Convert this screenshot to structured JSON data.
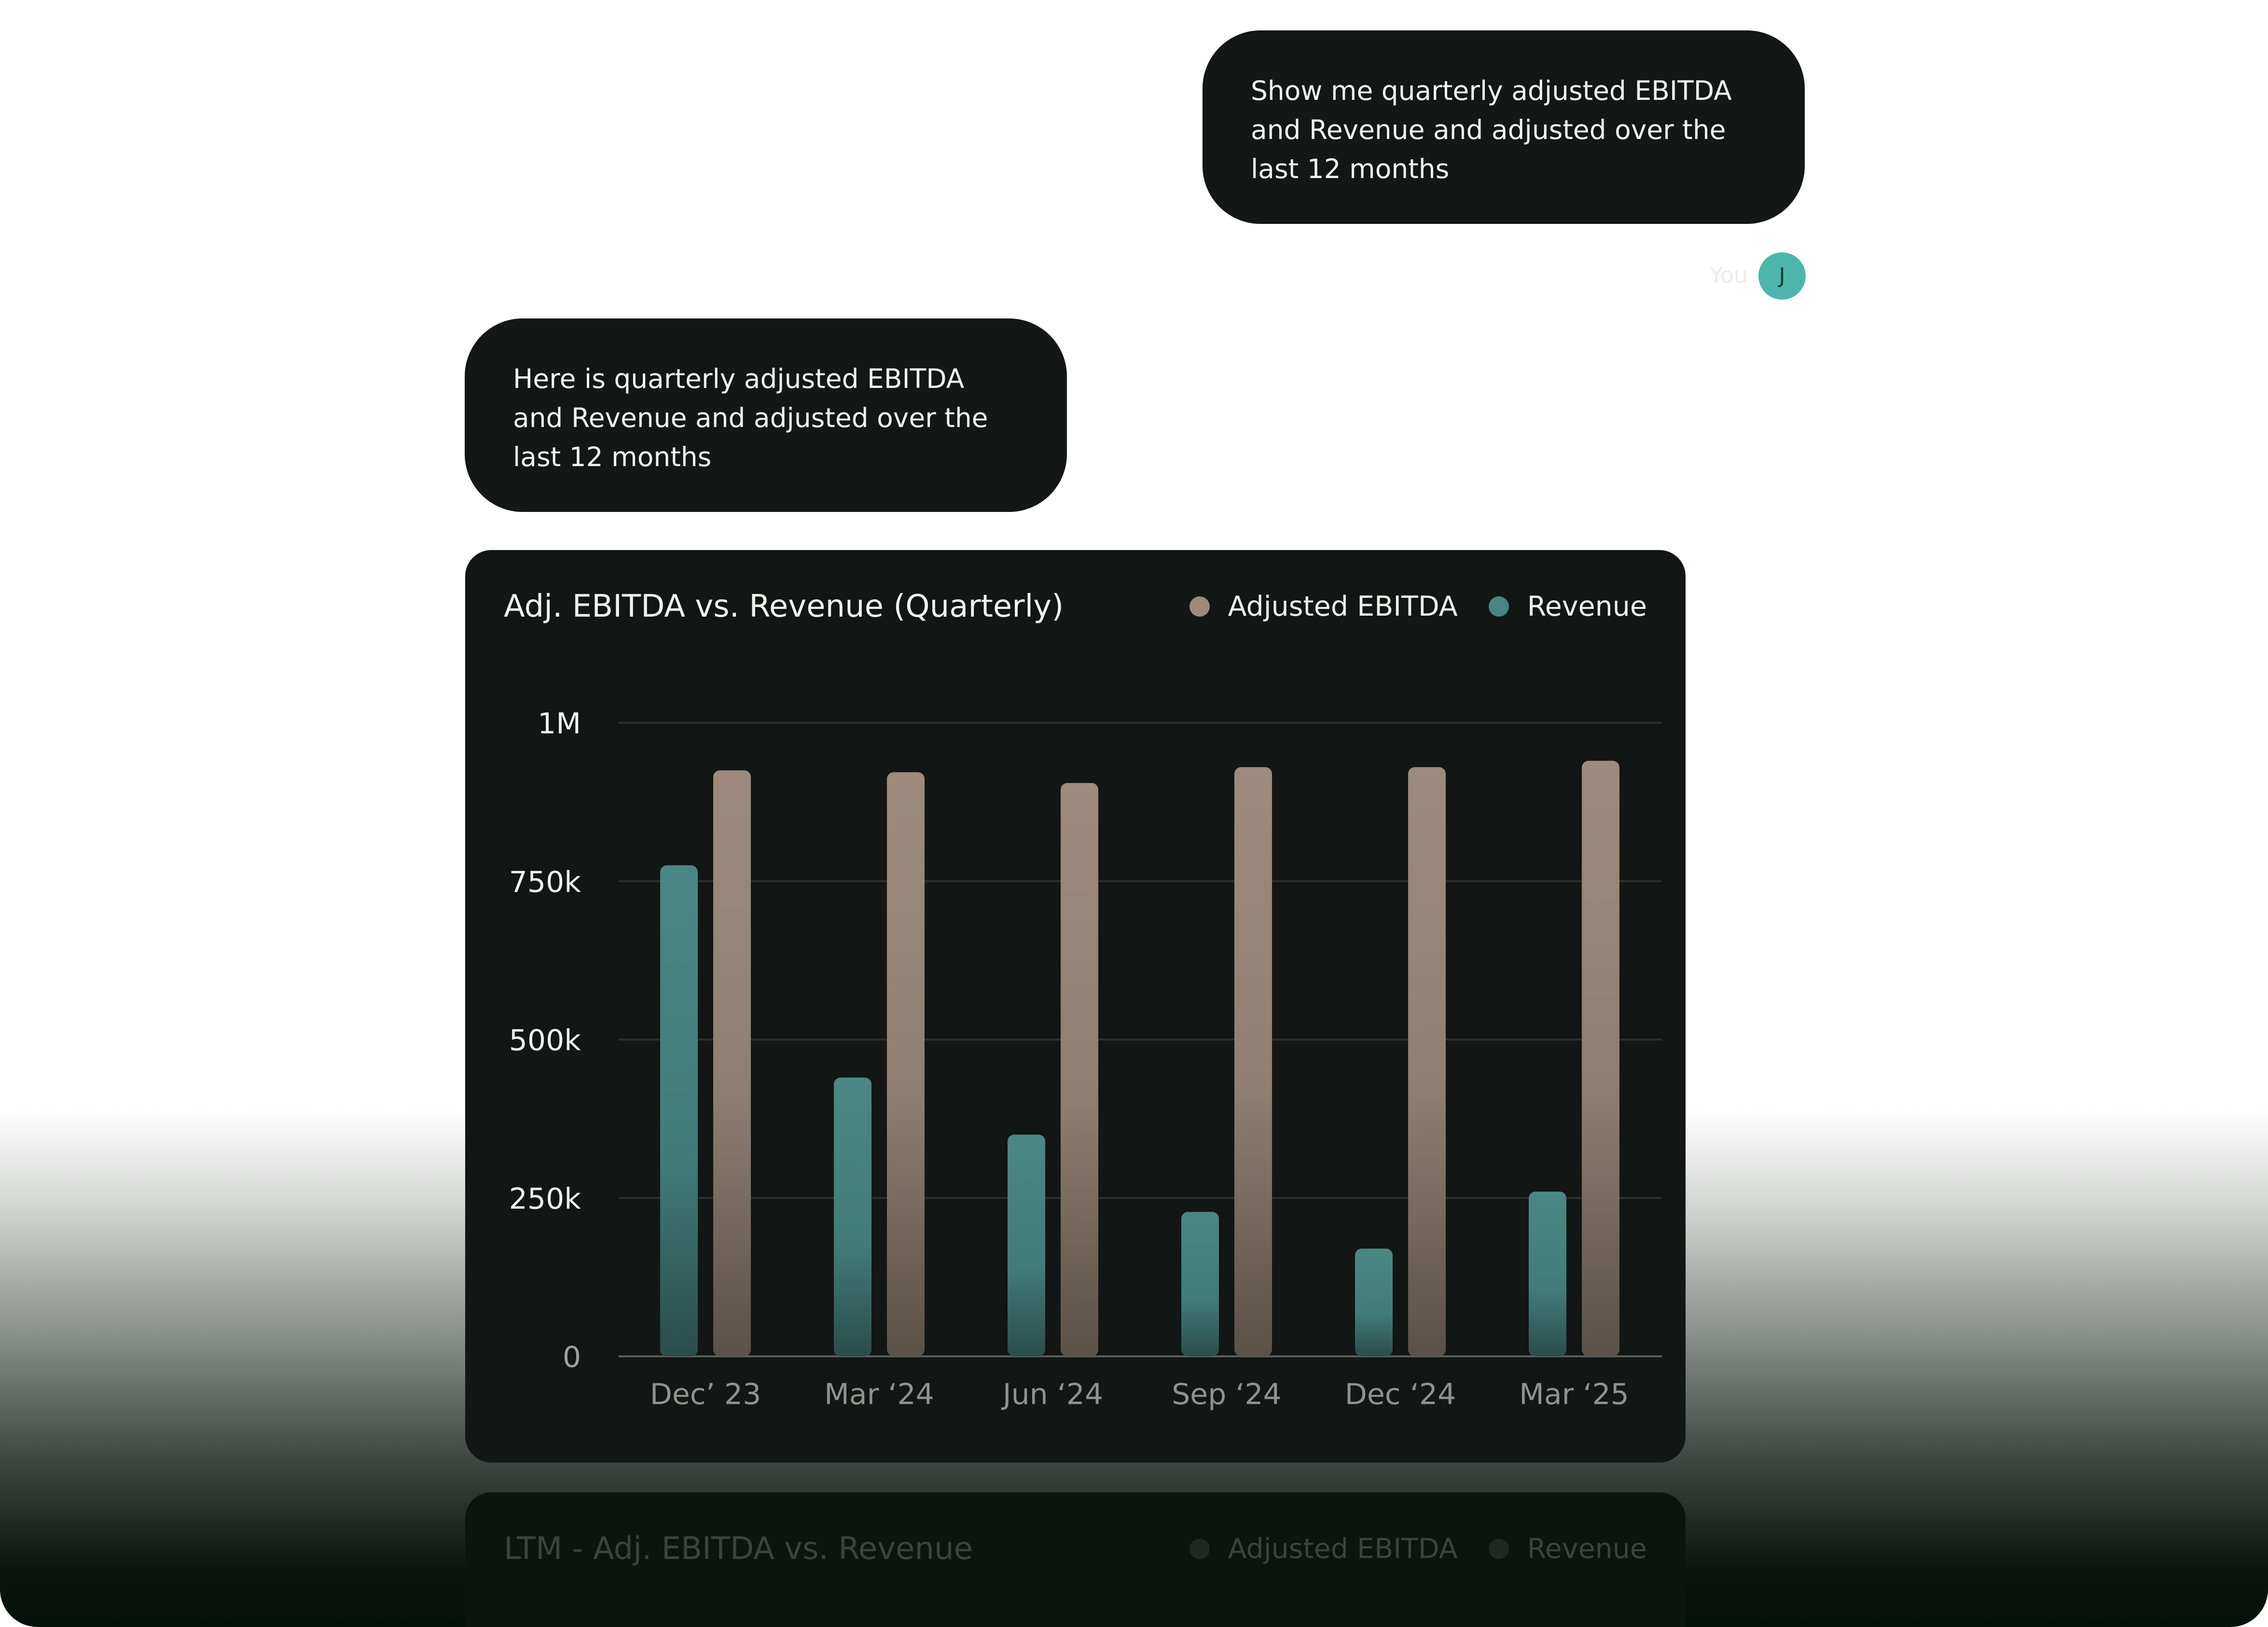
{
  "conversation": {
    "user_message": "Show me quarterly adjusted EBITDA and Revenue and adjusted over the last 12 months",
    "sender_label": "You",
    "avatar_initial": "J",
    "assistant_message": "Here is quarterly adjusted EBITDA and Revenue and adjusted over the last 12 months"
  },
  "colors": {
    "bubble_bg": "#131816",
    "card_bg": "#121614",
    "avatar_bg": "#4db6ac",
    "revenue": "#4a8582",
    "ebitda": "#9c8a7c"
  },
  "chart_card": {
    "title": "Adj. EBITDA vs. Revenue (Quarterly)",
    "legend": {
      "series_a": "Adjusted EBITDA",
      "series_b": "Revenue"
    }
  },
  "chart_data": {
    "type": "bar",
    "title": "Adj. EBITDA vs. Revenue (Quarterly)",
    "categories": [
      "Dec’ 23",
      "Mar ‘24",
      "Jun ‘24",
      "Sep ‘24",
      "Dec ‘24",
      "Mar ‘25"
    ],
    "series": [
      {
        "name": "Revenue",
        "values": [
          775000,
          440000,
          350000,
          228000,
          170000,
          260000
        ]
      },
      {
        "name": "Adjusted EBITDA",
        "values": [
          925000,
          922000,
          905000,
          930000,
          930000,
          940000
        ]
      }
    ],
    "ylim": [
      0,
      1000000
    ],
    "yticks": [
      0,
      250000,
      500000,
      750000,
      1000000
    ],
    "ytick_labels": [
      "0",
      "250k",
      "500k",
      "750k",
      "1M"
    ],
    "grid": true,
    "legend_position": "top-right"
  },
  "second_card": {
    "title": "LTM - Adj. EBITDA vs. Revenue",
    "legend": {
      "series_a": "Adjusted EBITDA",
      "series_b": "Revenue"
    }
  }
}
